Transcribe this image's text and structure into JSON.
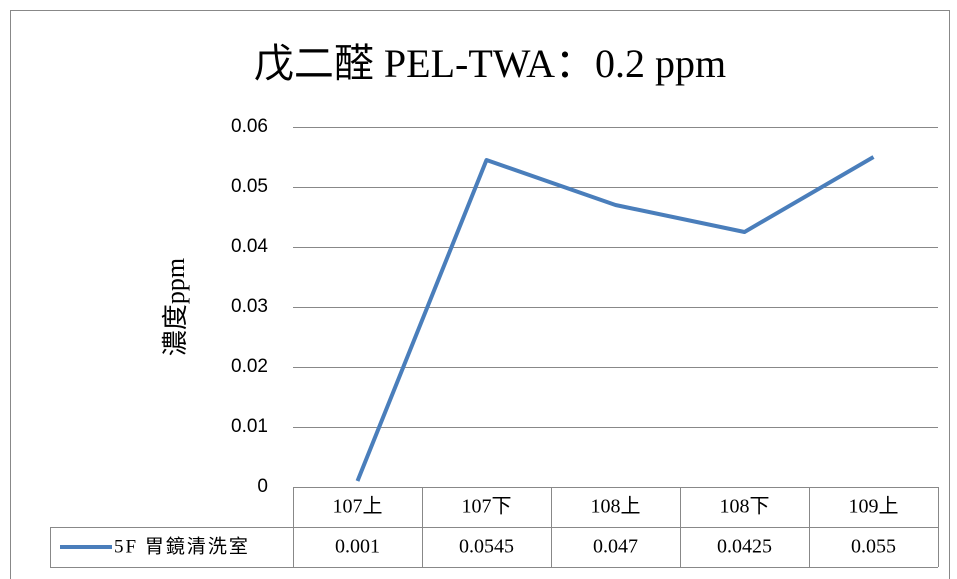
{
  "chart_data": {
    "type": "line",
    "title": "戊二醛 PEL-TWA：0.2 ppm",
    "y_label": "濃度ppm",
    "categories": [
      "107上",
      "107下",
      "108上",
      "108下",
      "109上"
    ],
    "series": [
      {
        "name": "5F 胃鏡清洗室",
        "color": "#4a7ebb",
        "values": [
          0.001,
          0.0545,
          0.047,
          0.0425,
          0.055
        ]
      }
    ],
    "ylim": [
      0,
      0.06
    ],
    "yticks": [
      0,
      0.01,
      0.02,
      0.03,
      0.04,
      0.05,
      0.06
    ],
    "grid": true,
    "data_table": true
  }
}
